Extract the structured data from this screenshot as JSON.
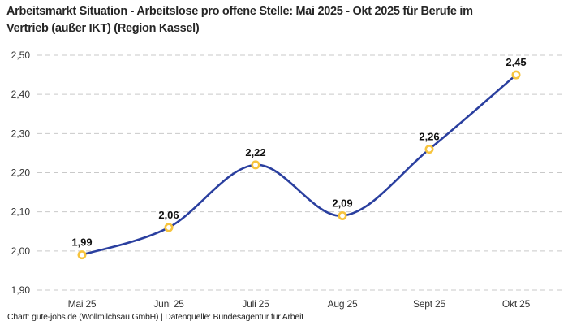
{
  "header": {
    "title": "Arbeitsmarkt Situation - Arbeitslose pro offene Stelle: Mai 2025 - Okt 2025 für Berufe im Vertrieb (außer IKT) (Region Kassel)"
  },
  "footer": {
    "credit": "Chart: gute-jobs.de (Wollmilchsau GmbH) | Datenquelle: Bundesagentur für Arbeit"
  },
  "chart_data": {
    "type": "line",
    "title": "Arbeitsmarkt Situation - Arbeitslose pro offene Stelle: Mai 2025 - Okt 2025 für Berufe im Vertrieb (außer IKT) (Region Kassel)",
    "categories": [
      "Mai 25",
      "Juni 25",
      "Juli 25",
      "Aug 25",
      "Sept 25",
      "Okt 25"
    ],
    "values": [
      1.99,
      2.06,
      2.22,
      2.09,
      2.26,
      2.45
    ],
    "value_labels": [
      "1,99",
      "2,06",
      "2,22",
      "2,09",
      "2,26",
      "2,45"
    ],
    "xlabel": "",
    "ylabel": "",
    "ylim": [
      1.9,
      2.5
    ],
    "y_ticks": [
      1.9,
      2.0,
      2.1,
      2.2,
      2.3,
      2.4,
      2.5
    ],
    "y_tick_labels": [
      "1,90",
      "2,00",
      "2,10",
      "2,20",
      "2,30",
      "2,40",
      "2,50"
    ],
    "grid": "horizontal-dashed",
    "legend_position": "none",
    "line_smoothing": "cubic",
    "colors": {
      "line": "#2a3f9f",
      "marker_ring": "#f7c43d",
      "marker_fill": "#ffffff",
      "grid_line": "#c9c9c9",
      "axis_text": "#333333",
      "data_label": "#111111"
    }
  }
}
